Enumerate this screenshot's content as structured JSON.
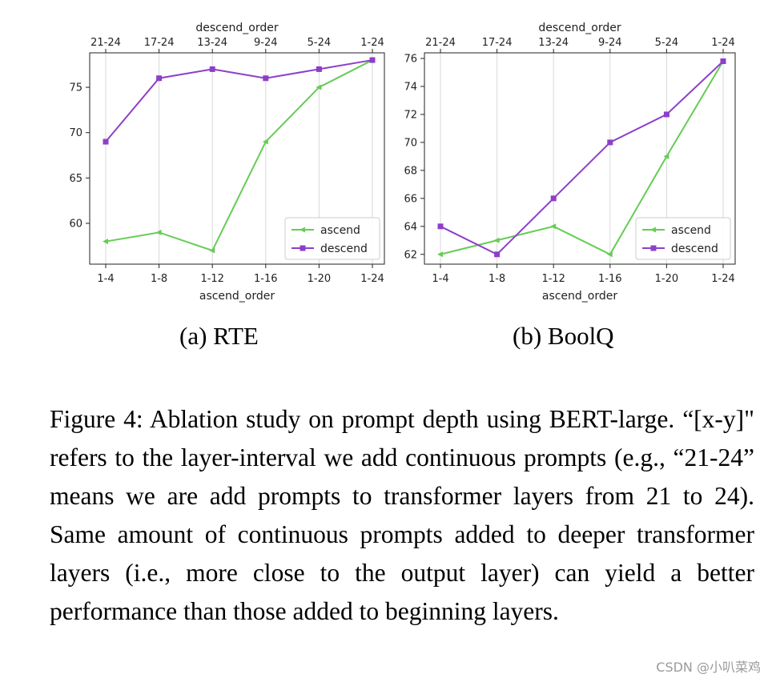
{
  "chart_data": [
    {
      "type": "line",
      "x": [
        "1-4",
        "1-8",
        "1-12",
        "1-16",
        "1-20",
        "1-24"
      ],
      "x2": [
        "21-24",
        "17-24",
        "13-24",
        "9-24",
        "5-24",
        "1-24"
      ],
      "xlabel": "ascend_order",
      "x2label": "descend_order",
      "ylim": [
        55.5,
        78.8
      ],
      "yticks": [
        60,
        65,
        70,
        75
      ],
      "grid": "x",
      "legend": "lower-right",
      "series": [
        {
          "name": "ascend",
          "color": "#66cc55",
          "marker": "triangle-left",
          "values": [
            58,
            59,
            57,
            69,
            75,
            78
          ]
        },
        {
          "name": "descend",
          "color": "#8d3fc9",
          "marker": "square",
          "values": [
            69,
            76,
            77,
            76,
            77,
            78
          ]
        }
      ],
      "subcaption": "(a) RTE"
    },
    {
      "type": "line",
      "x": [
        "1-4",
        "1-8",
        "1-12",
        "1-16",
        "1-20",
        "1-24"
      ],
      "x2": [
        "21-24",
        "17-24",
        "13-24",
        "9-24",
        "5-24",
        "1-24"
      ],
      "xlabel": "ascend_order",
      "x2label": "descend_order",
      "ylim": [
        61.3,
        76.4
      ],
      "yticks": [
        62,
        64,
        66,
        68,
        70,
        72,
        74,
        76
      ],
      "grid": "x",
      "legend": "lower-right",
      "series": [
        {
          "name": "ascend",
          "color": "#66cc55",
          "marker": "triangle-left",
          "values": [
            62,
            63,
            64,
            62,
            69,
            75.8
          ]
        },
        {
          "name": "descend",
          "color": "#8d3fc9",
          "marker": "square",
          "values": [
            64,
            62,
            66,
            70,
            72,
            75.8
          ]
        }
      ],
      "subcaption": "(b) BoolQ"
    }
  ],
  "caption": "Figure 4: Ablation study on prompt depth using BERT-large. “[x-y]\" refers to the layer-interval we add continuous prompts (e.g., “21-24” means we are add prompts to transformer layers from 21 to 24). Same amount of continuous prompts added to deeper transformer layers (i.e., more close to the output layer) can yield a better performance than those added to beginning layers.",
  "watermark": "CSDN @小叭菜鸡"
}
